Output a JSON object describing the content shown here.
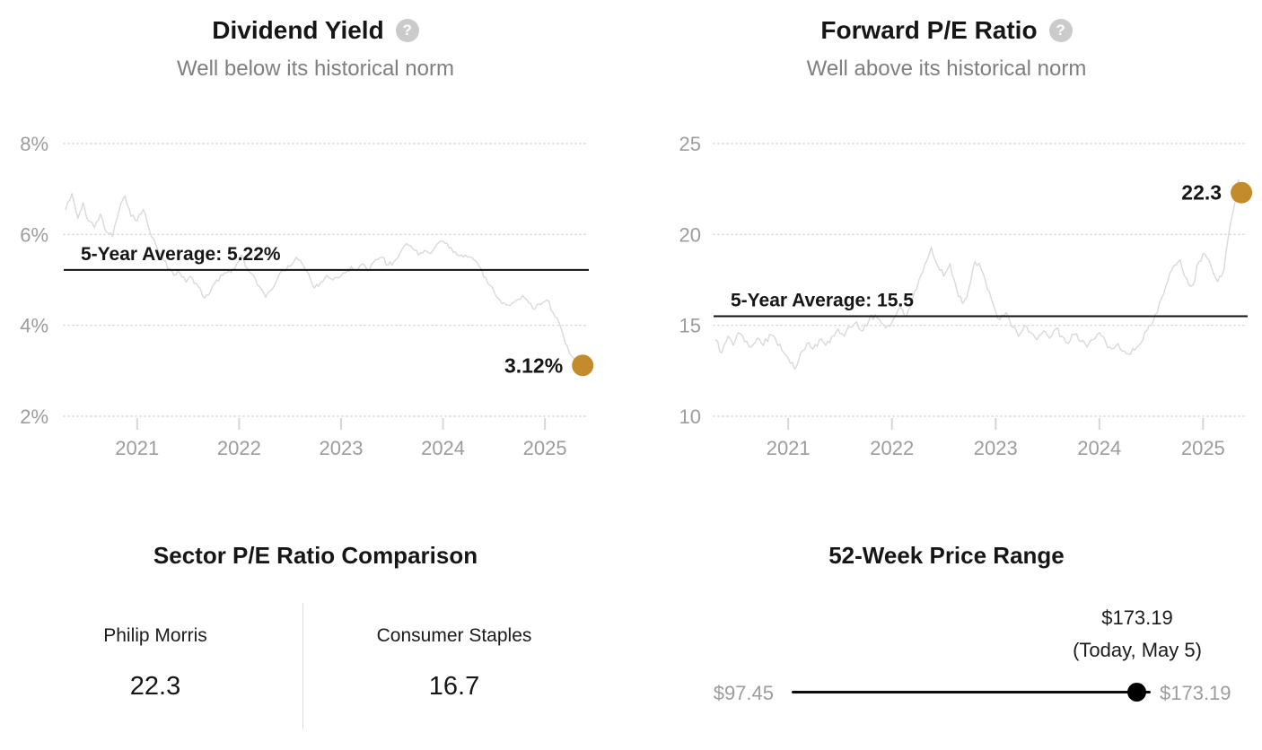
{
  "colors": {
    "accent_gold": "#c48b2d",
    "series_line": "#d9d9d9",
    "gridline": "#d2d2d2",
    "axis_text": "#9c9c9c",
    "subtitle_text": "#7f7f7f",
    "text_primary": "#161616",
    "average_line": "#111111",
    "range_marker": "#000000"
  },
  "chart_data": [
    {
      "type": "line",
      "id": "dividend-yield",
      "title": "Dividend Yield",
      "help_icon": "?",
      "subtitle": "Well below its historical norm",
      "legend": "none",
      "grid": "dotted horizontal",
      "ylim": [
        2,
        8
      ],
      "xlim": [
        2020.28,
        2025.43
      ],
      "y_ticks": [
        {
          "value": 8,
          "label": "8%"
        },
        {
          "value": 6,
          "label": "6%"
        },
        {
          "value": 4,
          "label": "4%"
        },
        {
          "value": 2,
          "label": "2%"
        }
      ],
      "x_ticks": [
        {
          "value": 2021,
          "label": "2021"
        },
        {
          "value": 2022,
          "label": "2022"
        },
        {
          "value": 2023,
          "label": "2023"
        },
        {
          "value": 2024,
          "label": "2024"
        },
        {
          "value": 2025,
          "label": "2025"
        }
      ],
      "average": {
        "value": 5.22,
        "label": "5-Year Average: 5.22%"
      },
      "current": {
        "value": 3.12,
        "label": "3.12%"
      },
      "series": [
        {
          "name": "Dividend Yield",
          "x": [
            2020.3,
            2020.36,
            2020.42,
            2020.47,
            2020.52,
            2020.58,
            2020.64,
            2020.7,
            2020.76,
            2020.82,
            2020.88,
            2020.94,
            2021,
            2021.06,
            2021.12,
            2021.18,
            2021.24,
            2021.3,
            2021.36,
            2021.42,
            2021.48,
            2021.54,
            2021.6,
            2021.66,
            2021.72,
            2021.78,
            2021.84,
            2021.9,
            2021.96,
            2022.02,
            2022.08,
            2022.14,
            2022.2,
            2022.26,
            2022.32,
            2022.38,
            2022.44,
            2022.5,
            2022.56,
            2022.62,
            2022.68,
            2022.74,
            2022.8,
            2022.86,
            2022.92,
            2022.98,
            2023.04,
            2023.1,
            2023.16,
            2023.22,
            2023.28,
            2023.34,
            2023.4,
            2023.46,
            2023.52,
            2023.58,
            2023.64,
            2023.7,
            2023.76,
            2023.82,
            2023.88,
            2023.94,
            2024,
            2024.06,
            2024.12,
            2024.18,
            2024.24,
            2024.3,
            2024.36,
            2024.42,
            2024.48,
            2024.54,
            2024.6,
            2024.66,
            2024.72,
            2024.78,
            2024.84,
            2024.9,
            2024.96,
            2025.02,
            2025.08,
            2025.14,
            2025.2,
            2025.26,
            2025.31,
            2025.34,
            2025.37
          ],
          "y": [
            6.55,
            6.9,
            6.35,
            6.7,
            6.3,
            6.15,
            6.45,
            6.05,
            5.95,
            6.5,
            6.85,
            6.4,
            6.3,
            6.55,
            6.1,
            5.8,
            5.55,
            5.25,
            5.1,
            5.15,
            4.95,
            5.05,
            4.85,
            4.6,
            4.75,
            5,
            5.1,
            5.2,
            5.25,
            5.55,
            5.25,
            5.1,
            4.85,
            4.62,
            4.78,
            5.05,
            5.2,
            5.3,
            5.5,
            5.35,
            5.15,
            4.82,
            4.95,
            5.1,
            5,
            5.05,
            5.15,
            5.3,
            5.2,
            5.35,
            5.22,
            5.45,
            5.5,
            5.32,
            5.4,
            5.6,
            5.8,
            5.7,
            5.55,
            5.65,
            5.58,
            5.78,
            5.85,
            5.7,
            5.62,
            5.55,
            5.5,
            5.45,
            5.28,
            5.05,
            4.85,
            4.6,
            4.5,
            4.44,
            4.56,
            4.66,
            4.5,
            4.35,
            4.46,
            4.56,
            4.28,
            4.05,
            3.6,
            3.32,
            3.22,
            3.3,
            3.12
          ]
        }
      ]
    },
    {
      "type": "line",
      "id": "forward-pe-ratio",
      "title": "Forward P/E Ratio",
      "help_icon": "?",
      "subtitle": "Well above its historical norm",
      "legend": "none",
      "grid": "dotted horizontal",
      "ylim": [
        10,
        25
      ],
      "xlim": [
        2020.28,
        2025.43
      ],
      "y_ticks": [
        {
          "value": 25,
          "label": "25"
        },
        {
          "value": 20,
          "label": "20"
        },
        {
          "value": 15,
          "label": "15"
        },
        {
          "value": 10,
          "label": "10"
        }
      ],
      "x_ticks": [
        {
          "value": 2021,
          "label": "2021"
        },
        {
          "value": 2022,
          "label": "2022"
        },
        {
          "value": 2023,
          "label": "2023"
        },
        {
          "value": 2024,
          "label": "2024"
        },
        {
          "value": 2025,
          "label": "2025"
        }
      ],
      "average": {
        "value": 15.5,
        "label": "5-Year Average: 15.5"
      },
      "current": {
        "value": 22.3,
        "label": "22.3"
      },
      "series": [
        {
          "name": "Forward P/E Ratio",
          "x": [
            2020.3,
            2020.36,
            2020.42,
            2020.47,
            2020.52,
            2020.58,
            2020.64,
            2020.7,
            2020.76,
            2020.82,
            2020.88,
            2020.94,
            2021,
            2021.06,
            2021.12,
            2021.18,
            2021.24,
            2021.3,
            2021.36,
            2021.42,
            2021.48,
            2021.54,
            2021.6,
            2021.66,
            2021.72,
            2021.78,
            2021.84,
            2021.9,
            2021.96,
            2022.02,
            2022.08,
            2022.14,
            2022.2,
            2022.26,
            2022.32,
            2022.38,
            2022.44,
            2022.5,
            2022.56,
            2022.62,
            2022.68,
            2022.74,
            2022.8,
            2022.86,
            2022.92,
            2022.98,
            2023.04,
            2023.1,
            2023.16,
            2023.22,
            2023.28,
            2023.34,
            2023.4,
            2023.46,
            2023.52,
            2023.58,
            2023.64,
            2023.7,
            2023.76,
            2023.82,
            2023.88,
            2023.94,
            2024,
            2024.06,
            2024.12,
            2024.18,
            2024.24,
            2024.3,
            2024.36,
            2024.42,
            2024.48,
            2024.54,
            2024.6,
            2024.66,
            2024.72,
            2024.78,
            2024.84,
            2024.9,
            2024.96,
            2025.02,
            2025.08,
            2025.14,
            2025.2,
            2025.26,
            2025.31,
            2025.34,
            2025.37
          ],
          "y": [
            14.2,
            13.5,
            14.4,
            13.9,
            14.6,
            14.1,
            13.8,
            14.3,
            13.9,
            14.5,
            14.2,
            13.6,
            13.2,
            12.6,
            13.5,
            14,
            13.7,
            14.2,
            13.9,
            14.4,
            14.8,
            14.4,
            14.9,
            15.2,
            14.7,
            15.3,
            15.6,
            15.1,
            15,
            15.4,
            16,
            15.5,
            16.5,
            17.5,
            18.4,
            19.3,
            18.3,
            17.7,
            18.4,
            17.1,
            16.2,
            17,
            18.5,
            18.1,
            17,
            16.1,
            15.3,
            15.7,
            14.9,
            14.4,
            15,
            14.6,
            14.2,
            14.7,
            14.3,
            14.8,
            14.4,
            14,
            14.5,
            14.1,
            13.8,
            14.2,
            14.6,
            14.1,
            13.7,
            14,
            13.6,
            13.4,
            13.8,
            14.2,
            15,
            15.6,
            16.5,
            17.4,
            18.3,
            18.6,
            17.6,
            17.2,
            18.5,
            18.9,
            18.2,
            17.4,
            18,
            20.5,
            21.8,
            23,
            22.3
          ]
        }
      ]
    },
    {
      "type": "table",
      "id": "sector-pe-comparison",
      "title": "Sector P/E Ratio Comparison",
      "columns": [
        {
          "label": "Philip Morris",
          "value": "22.3"
        },
        {
          "label": "Consumer Staples",
          "value": "16.7"
        }
      ]
    },
    {
      "type": "range",
      "id": "52-week-price-range",
      "title": "52-Week Price Range",
      "low": 97.45,
      "high": 173.19,
      "today": 173.19,
      "low_label": "$97.45",
      "high_label": "$173.19",
      "today_value_label": "$173.19",
      "today_caption": "(Today, May 5)",
      "marker_position": 1.0
    }
  ]
}
